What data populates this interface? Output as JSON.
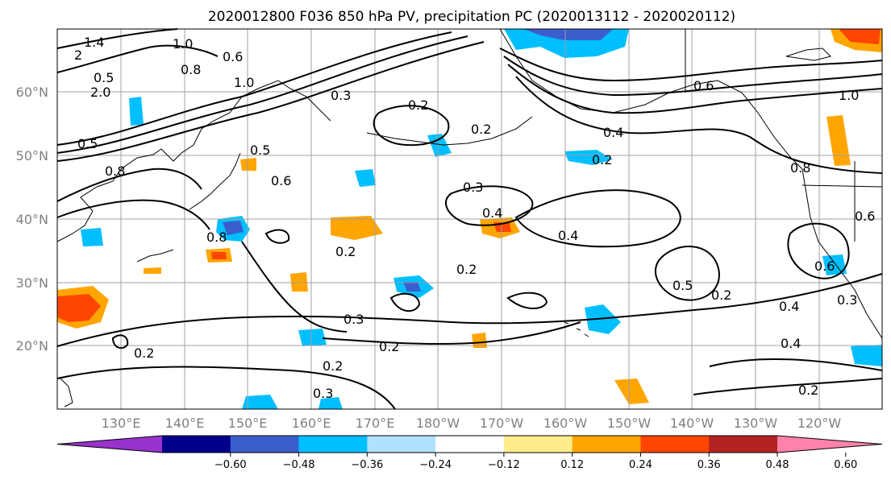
{
  "title": "2020012800 F036 850 hPa PV, precipitation PC (2020013112 - 2020020112)",
  "map": {
    "lat_labels": [
      "60°N",
      "50°N",
      "40°N",
      "30°N",
      "20°N"
    ],
    "lon_labels": [
      "130°E",
      "140°E",
      "150°E",
      "160°E",
      "170°E",
      "180°W",
      "170°W",
      "160°W",
      "150°W",
      "140°W",
      "130°W",
      "120°W"
    ],
    "gridlines": true
  },
  "colorbar": {
    "ticks": [
      "−0.60",
      "−0.48",
      "−0.36",
      "−0.24",
      "−0.12",
      "0.12",
      "0.24",
      "0.36",
      "0.48",
      "0.60"
    ],
    "colors": [
      "#9932cc",
      "#00008b",
      "#3a5fcd",
      "#00bfff",
      "#b0e2ff",
      "#ffffff",
      "#ffec8b",
      "#ffa500",
      "#ff4500",
      "#b22222",
      "#ff82ab"
    ],
    "extend": "both"
  },
  "contour_labels": [
    "1.4",
    "2",
    "1.0",
    "0.6",
    "0.8",
    "2.0",
    "1.0",
    "0.5",
    "0.3",
    "0.2",
    "0.2",
    "0.4",
    "0.2",
    "0.6",
    "0.5",
    "0.5",
    "0.8",
    "0.6",
    "0.8",
    "0.3",
    "0.4",
    "0.4",
    "0.2",
    "0.2",
    "0.3",
    "0.2",
    "0.2",
    "0.3",
    "0.2",
    "0.5",
    "0.2",
    "0.4",
    "0.4",
    "0.2",
    "0.3",
    "0.6",
    "1.0",
    "0.8",
    "0.6"
  ]
}
